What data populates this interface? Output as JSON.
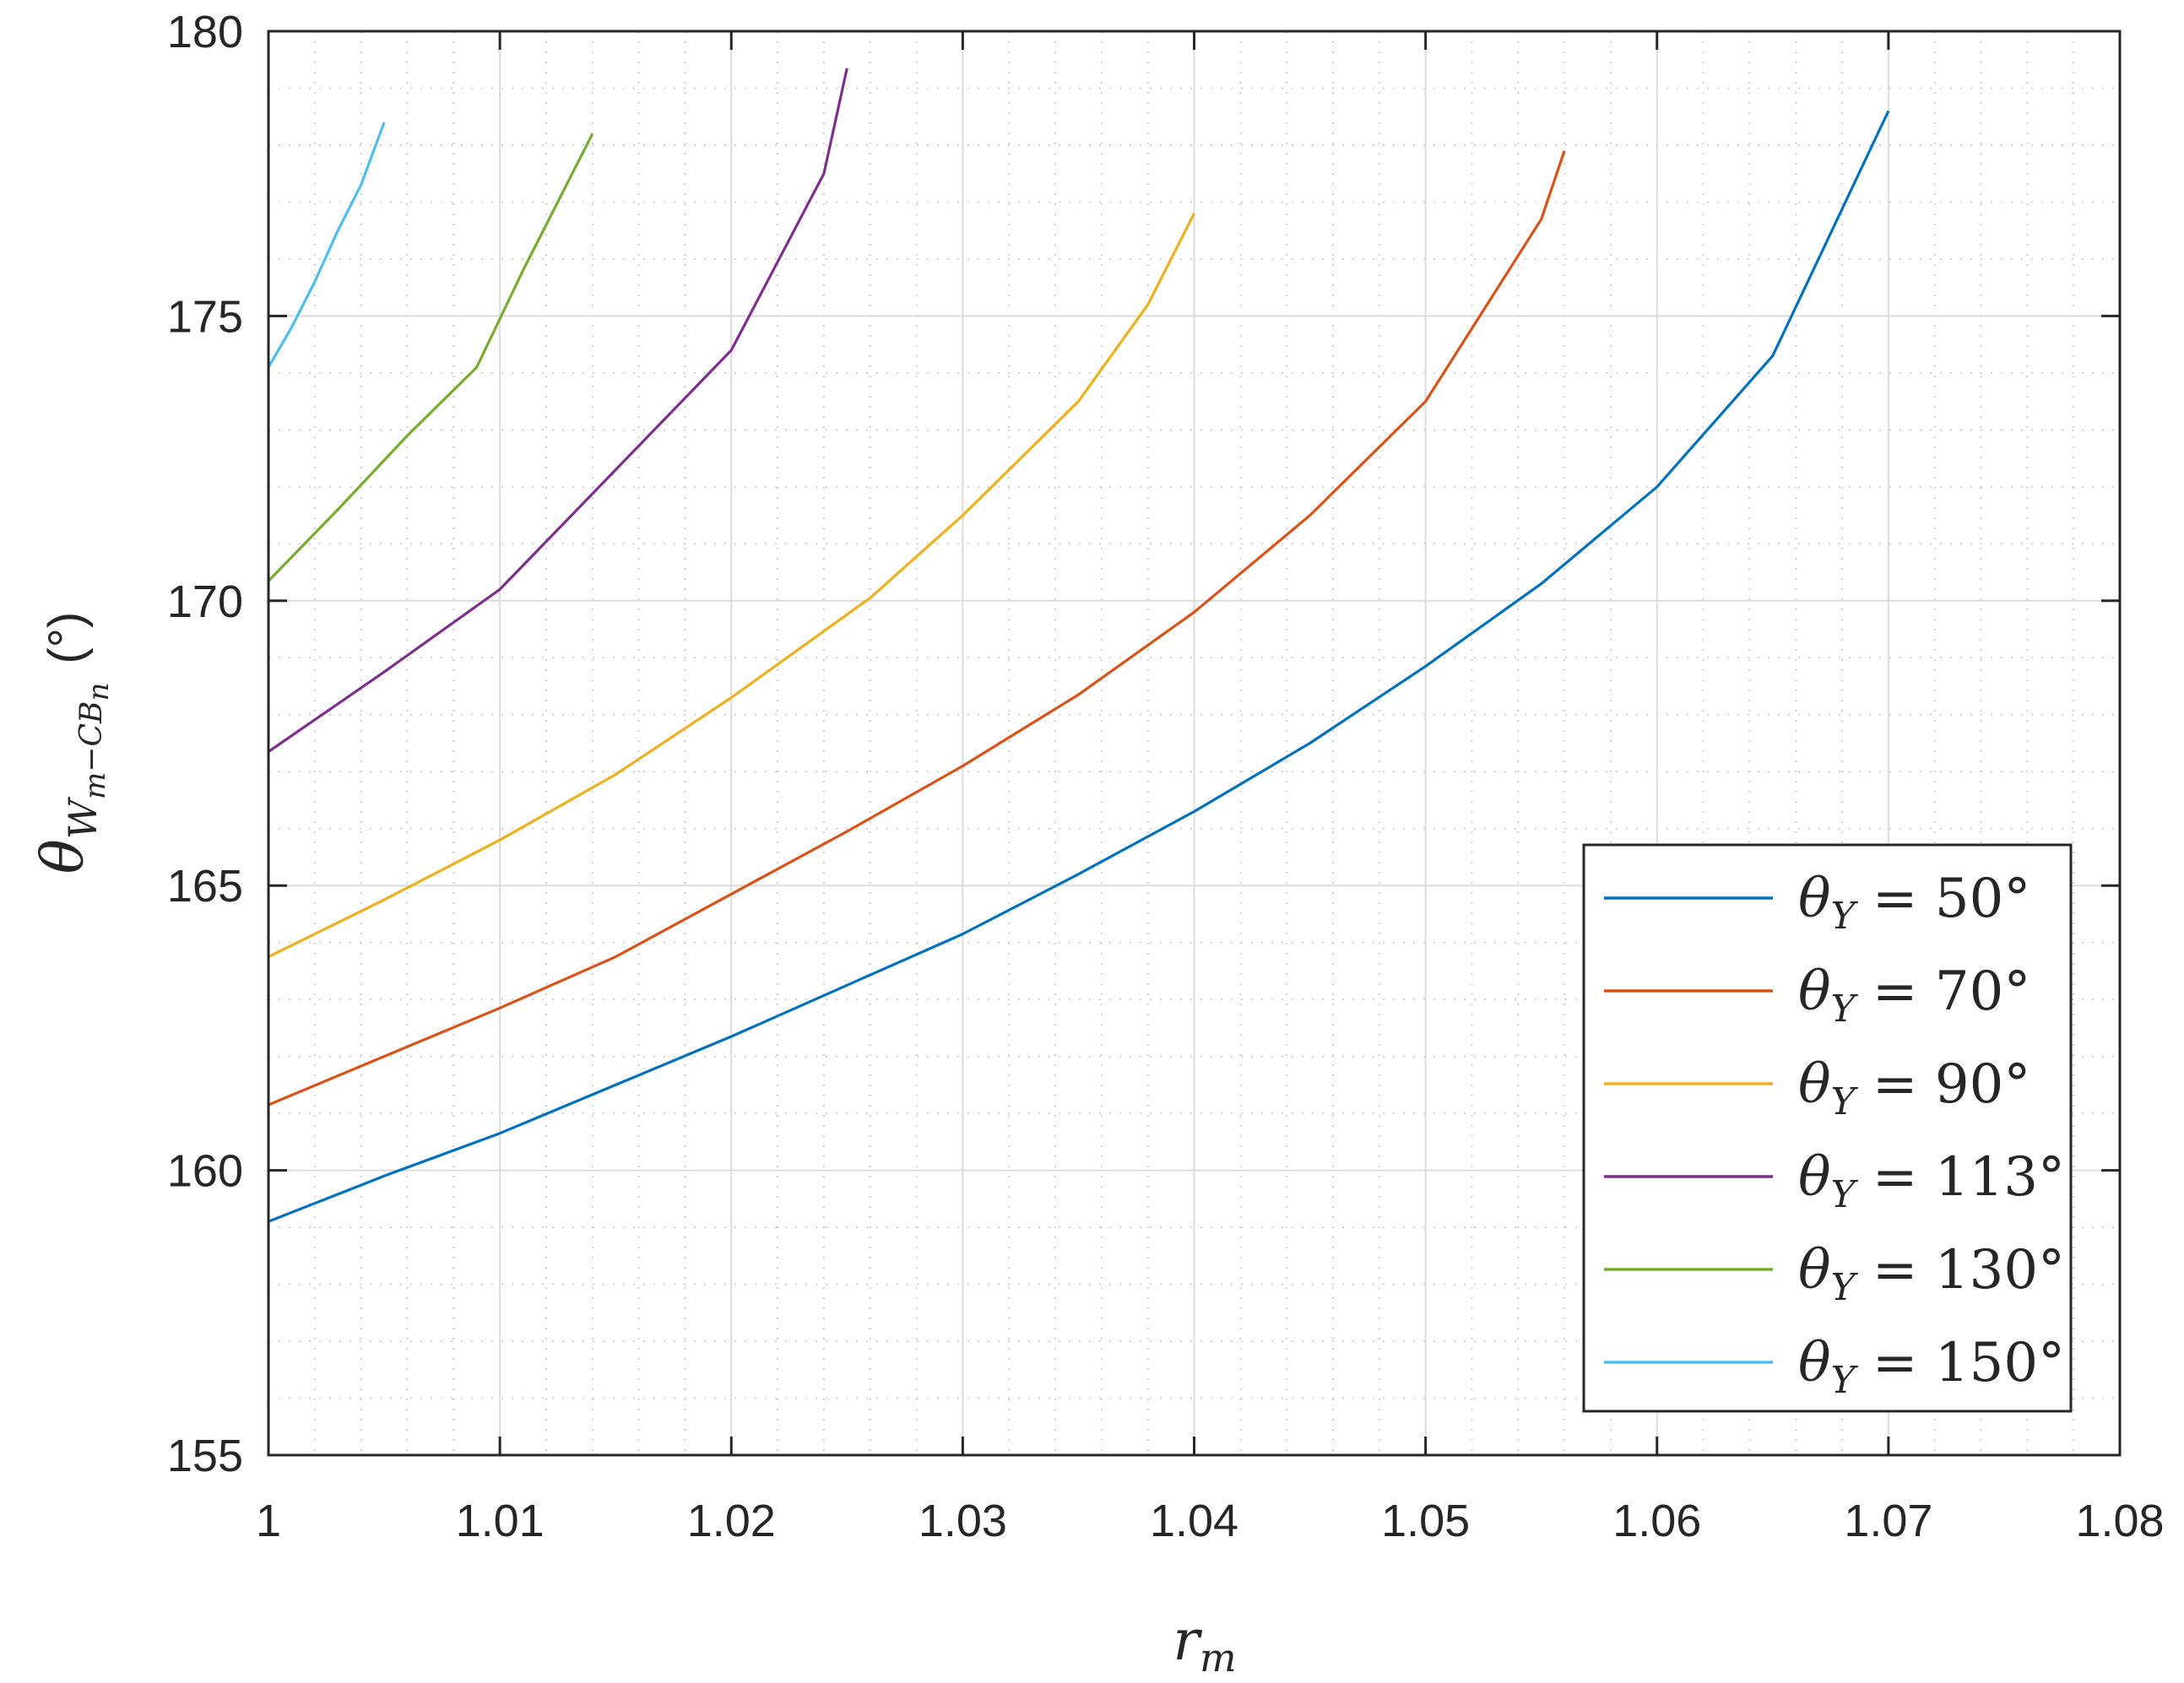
{
  "chart_data": {
    "type": "line",
    "title": "",
    "xlabel": "r",
    "xlabel_sub": "m",
    "ylabel": "θ",
    "ylabel_sub": "W",
    "ylabel_subsub": "m",
    "ylabel_sub2": "−CB",
    "ylabel_sub2sub": "n",
    "ylabel_unit": "(°)",
    "xlim": [
      1,
      1.08
    ],
    "ylim": [
      155,
      180
    ],
    "xticks": [
      1,
      1.01,
      1.02,
      1.03,
      1.04,
      1.05,
      1.06,
      1.07,
      1.08
    ],
    "xtick_labels": [
      "1",
      "1.01",
      "1.02",
      "1.03",
      "1.04",
      "1.05",
      "1.06",
      "1.07",
      "1.08"
    ],
    "yticks": [
      155,
      160,
      165,
      170,
      175,
      180
    ],
    "ytick_labels": [
      "155",
      "160",
      "165",
      "170",
      "175",
      "180"
    ],
    "grid": true,
    "minor_grid": true,
    "legend_position": "bottom-right",
    "series": [
      {
        "name": "θY = 50°",
        "label_sym": "θ",
        "label_sub": "Y",
        "label_rest": " = 50°",
        "color": "#0072BD",
        "x": [
          1,
          1.005,
          1.01,
          1.015,
          1.02,
          1.025,
          1.03,
          1.035,
          1.04,
          1.045,
          1.05,
          1.055,
          1.06,
          1.065,
          1.07
        ],
        "y": [
          159.1,
          159.9,
          160.65,
          161.5,
          162.35,
          163.25,
          164.15,
          165.2,
          166.3,
          167.5,
          168.85,
          170.3,
          172.0,
          174.3,
          178.6
        ]
      },
      {
        "name": "θY = 70°",
        "label_sym": "θ",
        "label_sub": "Y",
        "label_rest": " = 70°",
        "color": "#D95319",
        "x": [
          1,
          1.005,
          1.01,
          1.015,
          1.02,
          1.025,
          1.03,
          1.035,
          1.04,
          1.045,
          1.05,
          1.055,
          1.056
        ],
        "y": [
          161.15,
          162.0,
          162.85,
          163.75,
          164.85,
          165.95,
          167.1,
          168.35,
          169.8,
          171.5,
          173.5,
          176.7,
          177.9
        ]
      },
      {
        "name": "θY = 90°",
        "label_sym": "θ",
        "label_sub": "Y",
        "label_rest": " = 90°",
        "color": "#EDB120",
        "x": [
          1,
          1.005,
          1.01,
          1.015,
          1.02,
          1.026,
          1.03,
          1.035,
          1.038,
          1.04
        ],
        "y": [
          163.75,
          164.75,
          165.8,
          166.95,
          168.3,
          170.05,
          171.5,
          173.5,
          175.2,
          176.8
        ]
      },
      {
        "name": "θY = 113°",
        "label_sym": "θ",
        "label_sub": "Y",
        "label_rest": " = 113°",
        "color": "#7E2F8E",
        "x": [
          1,
          1.005,
          1.01,
          1.015,
          1.02,
          1.024,
          1.025
        ],
        "y": [
          167.35,
          168.75,
          170.2,
          172.3,
          174.4,
          177.5,
          179.35
        ]
      },
      {
        "name": "θY = 130°",
        "label_sym": "θ",
        "label_sub": "Y",
        "label_rest": " = 130°",
        "color": "#77AC30",
        "x": [
          1,
          1.003,
          1.006,
          1.009,
          1.011,
          1.014
        ],
        "y": [
          170.35,
          171.6,
          172.9,
          174.1,
          175.8,
          178.2
        ]
      },
      {
        "name": "θY = 150°",
        "label_sym": "θ",
        "label_sub": "Y",
        "label_rest": " = 150°",
        "color": "#4DBEEE",
        "x": [
          1,
          1.001,
          1.002,
          1.003,
          1.004,
          1.005
        ],
        "y": [
          174.1,
          174.8,
          175.6,
          176.5,
          177.3,
          178.4
        ]
      }
    ]
  }
}
